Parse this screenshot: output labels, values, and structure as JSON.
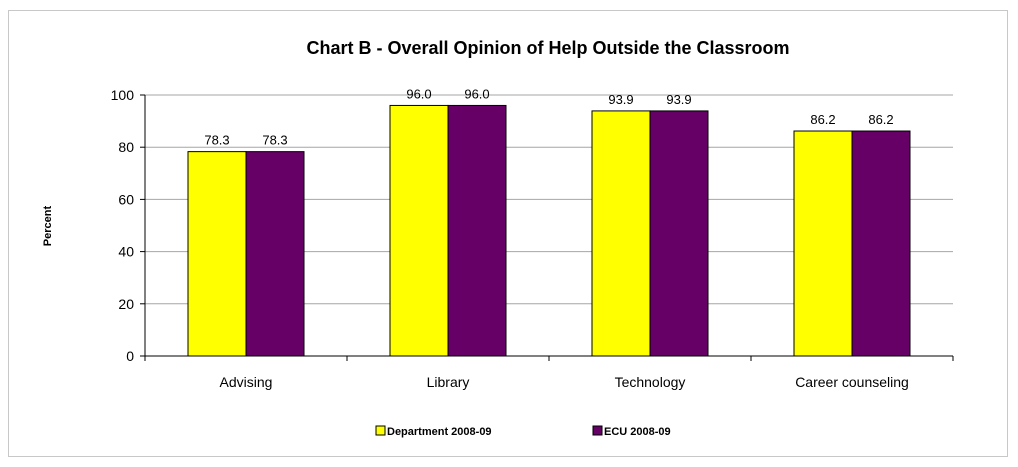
{
  "chart_data": {
    "type": "bar",
    "title": "Chart B - Overall Opinion of Help Outside the Classroom",
    "xlabel": "",
    "ylabel": "Percent",
    "ylim": [
      0,
      100
    ],
    "yticks": [
      "0",
      "20",
      "40",
      "60",
      "80",
      "100"
    ],
    "ytick_values": [
      0,
      20,
      40,
      60,
      80,
      100
    ],
    "grid": true,
    "legend": "bottom-center",
    "categories": [
      "Advising",
      "Library",
      "Technology",
      "Career counseling"
    ],
    "series": [
      {
        "name": "Department 2008-09",
        "color": "#ffff00",
        "values": [
          78.3,
          96.0,
          93.9,
          86.2
        ],
        "labels": [
          "78.3",
          "96.0",
          "93.9",
          "86.2"
        ]
      },
      {
        "name": "ECU 2008-09",
        "color": "#660066",
        "values": [
          78.3,
          96.0,
          93.9,
          86.2
        ],
        "labels": [
          "78.3",
          "96.0",
          "93.9",
          "86.2"
        ]
      }
    ]
  }
}
